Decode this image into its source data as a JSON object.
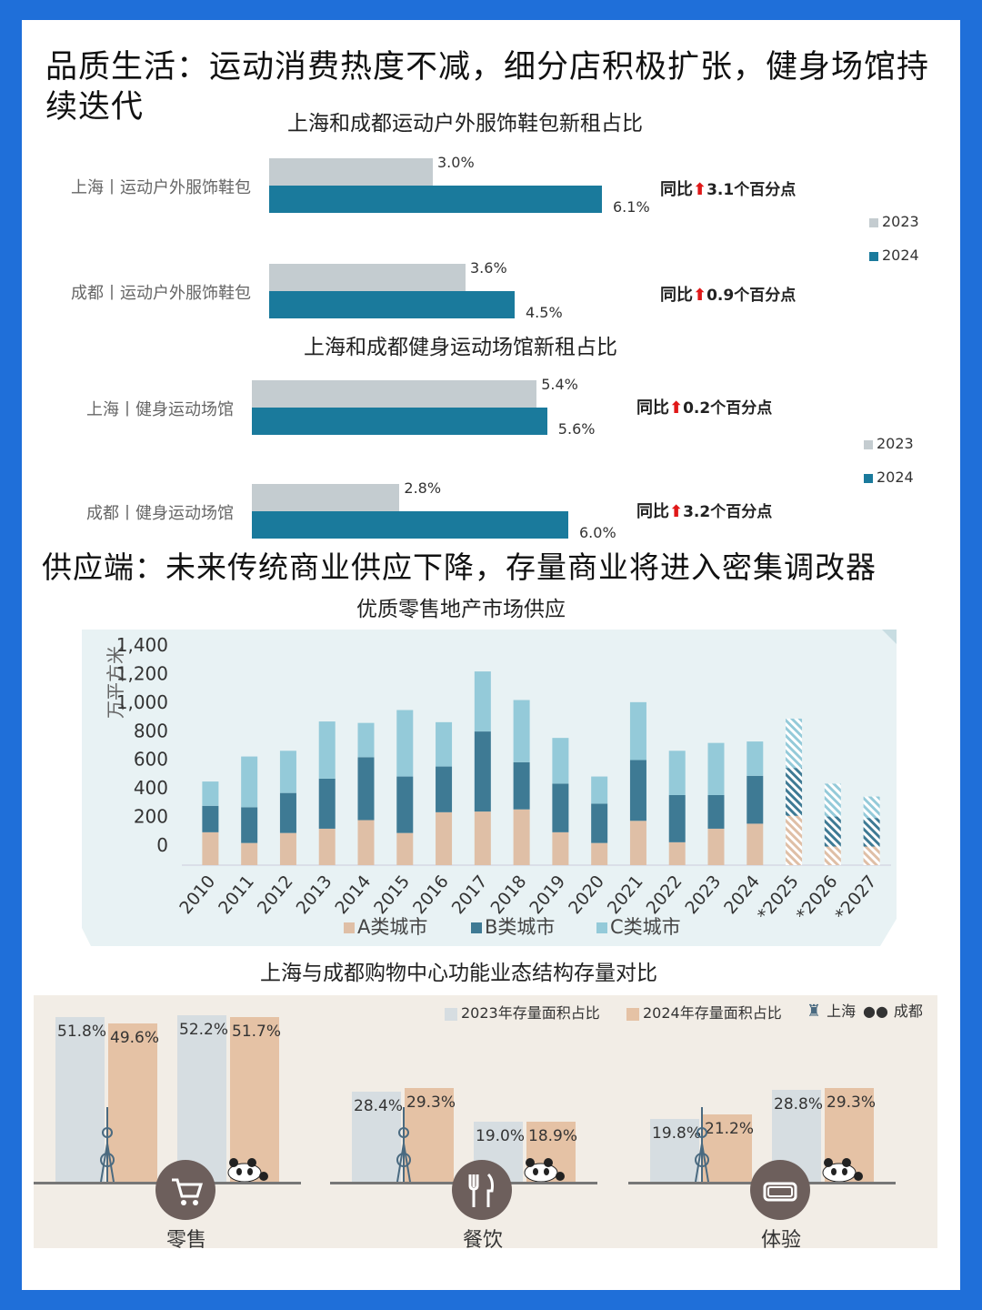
{
  "section1_title": "品质生活：运动消费热度不减，细分店积极扩张，健身场馆持续迭代",
  "section2_title": "供应端：未来传统商业供应下降，存量商业将进入密集调改器",
  "colors": {
    "y2023": "#c4ccd0",
    "y2024": "#1a7a9c",
    "A": "#dfbfa6",
    "B": "#3e7a94",
    "C": "#94cad9",
    "store2023": "#d6dde1",
    "store2024": "#e5c2a5",
    "panel": "#e8f2f4",
    "fmtbg": "#f2ede6",
    "icon": "#6d5f5c"
  },
  "chart_data": [
    {
      "type": "bar",
      "title": "上海和成都运动户外服饰鞋包新租占比",
      "categories": [
        "上海丨运动户外服饰鞋包",
        "成都丨运动户外服饰鞋包"
      ],
      "series": [
        {
          "name": "2023",
          "values": [
            3.0,
            3.6
          ],
          "labels": [
            "3.0%",
            "3.6%"
          ]
        },
        {
          "name": "2024",
          "values": [
            6.1,
            4.5
          ],
          "labels": [
            "6.1%",
            "4.5%"
          ]
        }
      ],
      "annotations": [
        {
          "prefix": "同比",
          "arrow": "⬆",
          "text": "3.1个百分点"
        },
        {
          "prefix": "同比",
          "arrow": "⬆",
          "text": "0.9个百分点"
        }
      ],
      "legend": [
        "2023",
        "2024"
      ]
    },
    {
      "type": "bar",
      "title": "上海和成都健身运动场馆新租占比",
      "categories": [
        "上海丨健身运动场馆",
        "成都丨健身运动场馆"
      ],
      "series": [
        {
          "name": "2023",
          "values": [
            5.4,
            2.8
          ],
          "labels": [
            "5.4%",
            "2.8%"
          ]
        },
        {
          "name": "2024",
          "values": [
            5.6,
            6.0
          ],
          "labels": [
            "5.6%",
            "6.0%"
          ]
        }
      ],
      "annotations": [
        {
          "prefix": "同比",
          "arrow": "⬆",
          "text": "0.2个百分点"
        },
        {
          "prefix": "同比",
          "arrow": "⬆",
          "text": "3.2个百分点"
        }
      ],
      "legend": [
        "2023",
        "2024"
      ]
    },
    {
      "type": "bar",
      "stacked": true,
      "title": "优质零售地产市场供应",
      "ylabel": "万平方米",
      "ylim": [
        0,
        1400
      ],
      "yticks": [
        "1,400",
        "1,200",
        "1,000",
        "800",
        "600",
        "400",
        "200",
        "0"
      ],
      "categories": [
        "2010",
        "2011",
        "2012",
        "2013",
        "2014",
        "2015",
        "2016",
        "2017",
        "2018",
        "2019",
        "2020",
        "2021",
        "2022",
        "2023",
        "2024",
        "*2025",
        "*2026",
        "*2027"
      ],
      "forecast_from": "*2025",
      "series": [
        {
          "name": "A类城市",
          "values": [
            230,
            155,
            225,
            255,
            315,
            225,
            370,
            375,
            390,
            230,
            155,
            310,
            160,
            255,
            290,
            345,
            130,
            130
          ]
        },
        {
          "name": "B类城市",
          "values": [
            185,
            250,
            280,
            350,
            440,
            395,
            320,
            560,
            330,
            340,
            275,
            425,
            330,
            235,
            335,
            335,
            210,
            200
          ]
        },
        {
          "name": "C类城市",
          "values": [
            170,
            355,
            295,
            400,
            240,
            465,
            310,
            420,
            435,
            320,
            190,
            405,
            310,
            365,
            240,
            345,
            230,
            150
          ]
        }
      ]
    },
    {
      "type": "bar",
      "title": "上海与成都购物中心功能业态结构存量对比",
      "legend": [
        "2023年存量面积占比",
        "2024年存量面积占比",
        "上海",
        "成都"
      ],
      "categories": [
        "零售",
        "餐饮",
        "体验"
      ],
      "series": [
        {
          "name": "上海 2023",
          "values": [
            51.8,
            28.4,
            19.8
          ],
          "labels": [
            "51.8%",
            "28.4%",
            "19.8%"
          ]
        },
        {
          "name": "上海 2024",
          "values": [
            49.6,
            29.3,
            21.2
          ],
          "labels": [
            "49.6%",
            "29.3%",
            "21.2%"
          ]
        },
        {
          "name": "成都 2023",
          "values": [
            52.2,
            19.0,
            28.8
          ],
          "labels": [
            "52.2%",
            "19.0%",
            "28.8%"
          ]
        },
        {
          "name": "成都 2024",
          "values": [
            51.7,
            18.9,
            29.3
          ],
          "labels": [
            "51.7%",
            "18.9%",
            "29.3%"
          ]
        }
      ]
    }
  ]
}
